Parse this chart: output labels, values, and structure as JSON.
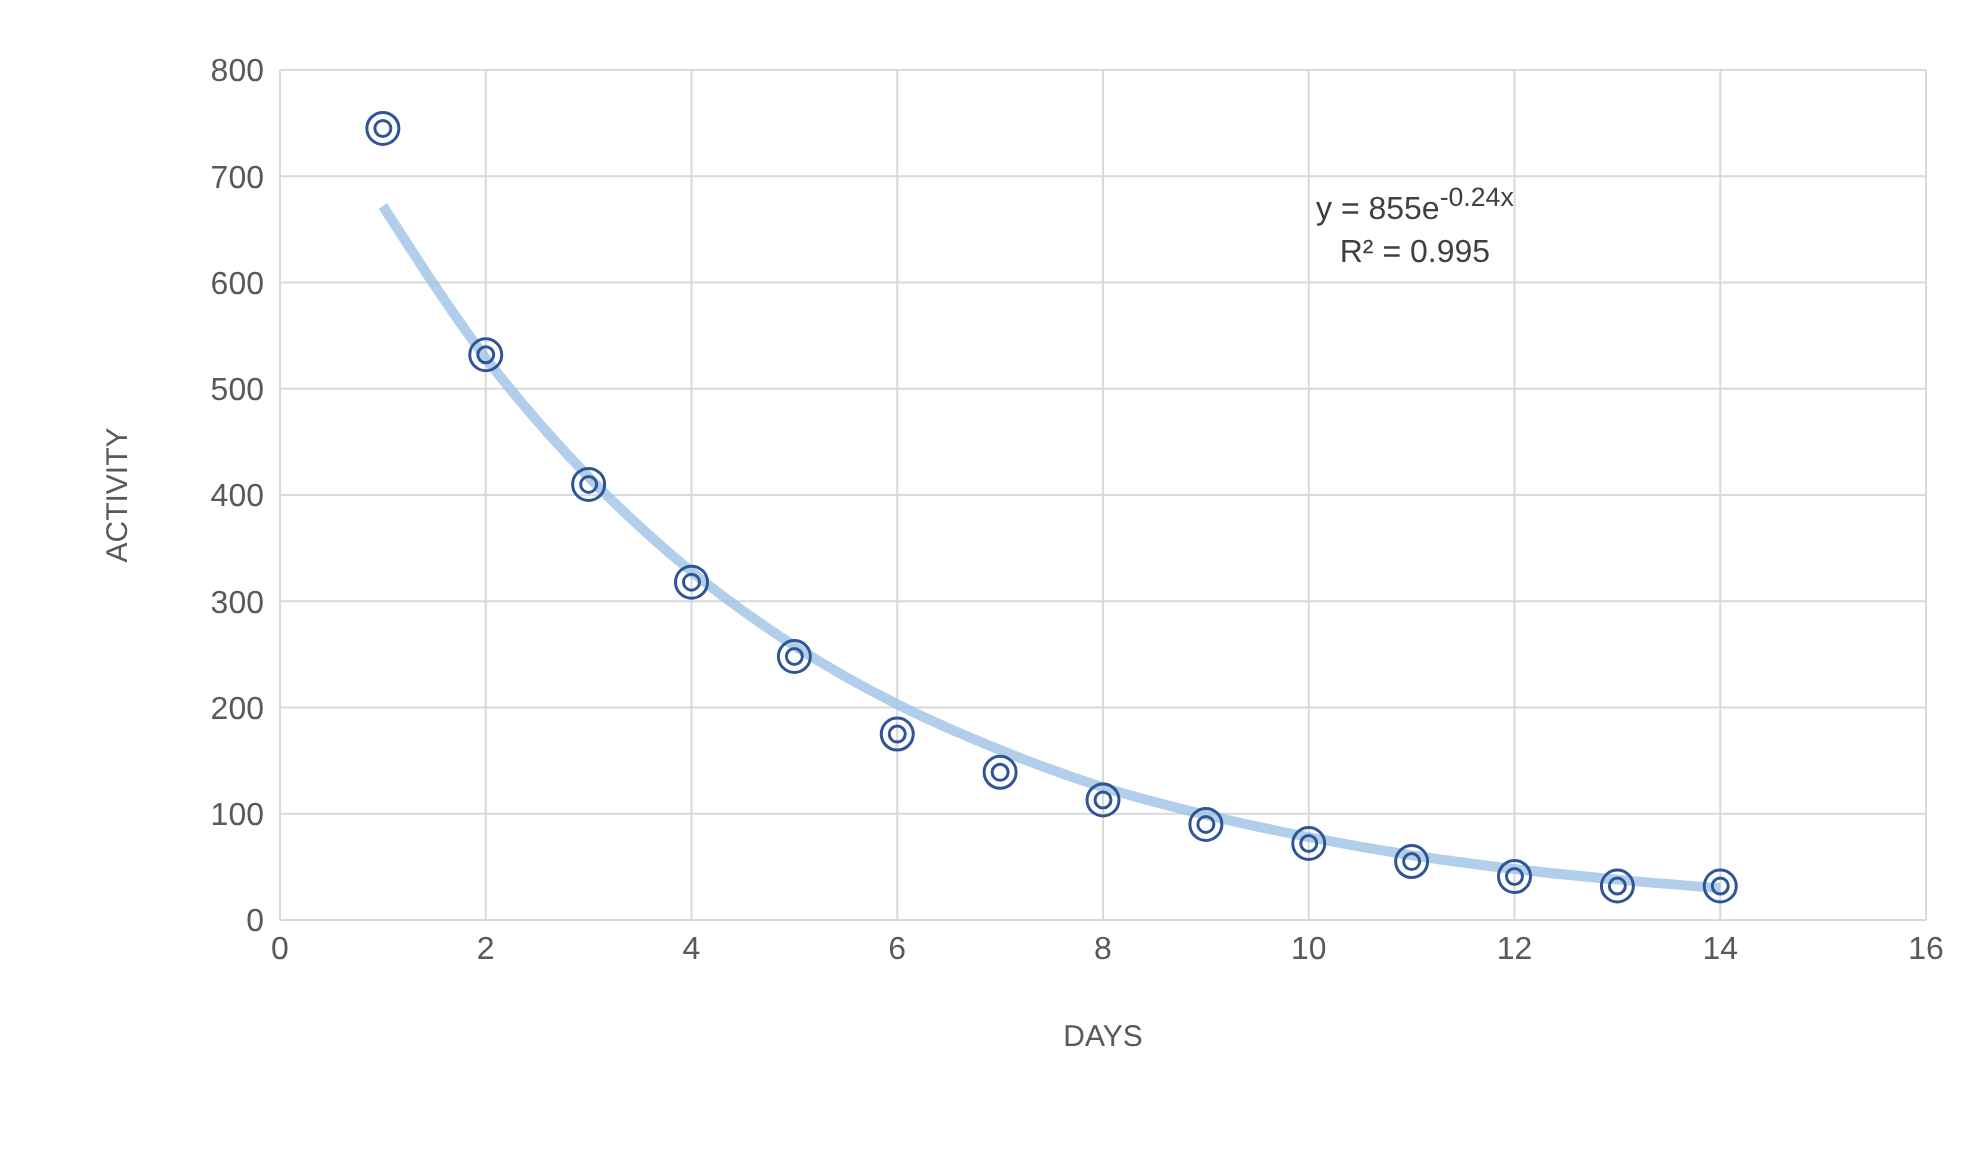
{
  "chart_data": {
    "type": "scatter",
    "xlabel": "DAYS",
    "ylabel": "ACTIVITY",
    "xlim": [
      0,
      16
    ],
    "xticks": [
      0,
      2,
      4,
      6,
      8,
      10,
      12,
      14,
      16
    ],
    "ylim": [
      0,
      800
    ],
    "yticks": [
      0,
      100,
      200,
      300,
      400,
      500,
      600,
      700,
      800
    ],
    "grid": true,
    "marker": "circle",
    "annotations": [
      "y = 855e$^{-0.24x}$",
      "R² = 0.995"
    ],
    "series": [
      {
        "color": "#2f5597",
        "x": [
          1,
          2,
          3,
          4,
          5,
          6,
          7,
          8,
          9,
          10,
          11,
          12,
          13,
          14
        ],
        "values": [
          745,
          532,
          410,
          318,
          248,
          175,
          139,
          113,
          90,
          72,
          55,
          41,
          32,
          32
        ]
      },
      {
        "type": "line",
        "color": "#9dc3e6",
        "line_style": "solid",
        "marker": "none",
        "x": [
          1,
          2,
          3,
          4,
          5,
          6,
          7,
          8,
          9,
          10,
          11,
          12,
          13,
          14
        ],
        "values": [
          672,
          529,
          417,
          328,
          258,
          203,
          160,
          125,
          99,
          78,
          61,
          48,
          38,
          30
        ]
      }
    ]
  }
}
